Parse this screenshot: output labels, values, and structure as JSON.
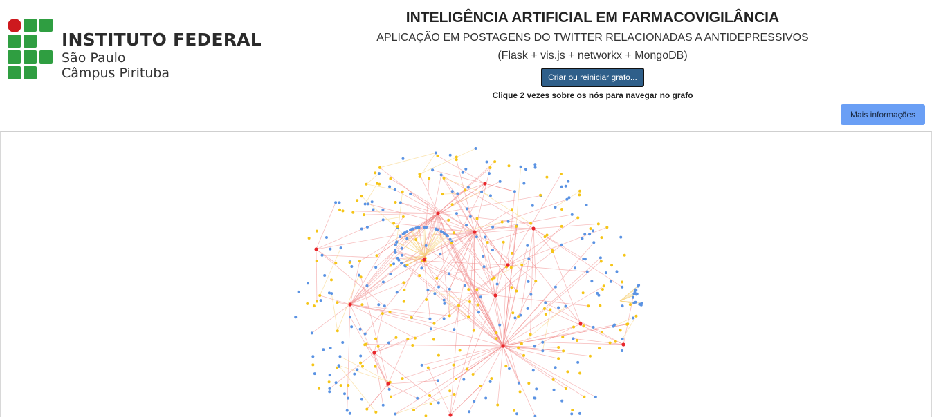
{
  "logo": {
    "title": "INSTITUTO FEDERAL",
    "line1": "São Paulo",
    "line2": "Câmpus Pirituba",
    "colors": {
      "green": "#2f9e41",
      "red": "#cd191e"
    }
  },
  "header": {
    "title": "INTELIGÊNCIA ARTIFICIAL EM FARMACOVIGILÂNCIA",
    "subtitle": "APLICAÇÃO EM POSTAGENS DO TWITTER RELACIONADAS A ANTIDEPRESSIVOS",
    "tech": "(Flask + vis.js + networkx + MongoDB)",
    "create_button": "Criar ou reiniciar grafo...",
    "hint_prefix": "Clique ",
    "hint_bold": "2",
    "hint_suffix": " vezes sobre os nós para navegar no grafo",
    "info_button": "Mais informações"
  },
  "graph": {
    "node_colors": {
      "hub": "#e8262b",
      "medium": "#f5c518",
      "leaf": "#5b93e3"
    },
    "edge_colors": {
      "hub": "#f08a8a",
      "medium": "#f7d27a"
    }
  }
}
